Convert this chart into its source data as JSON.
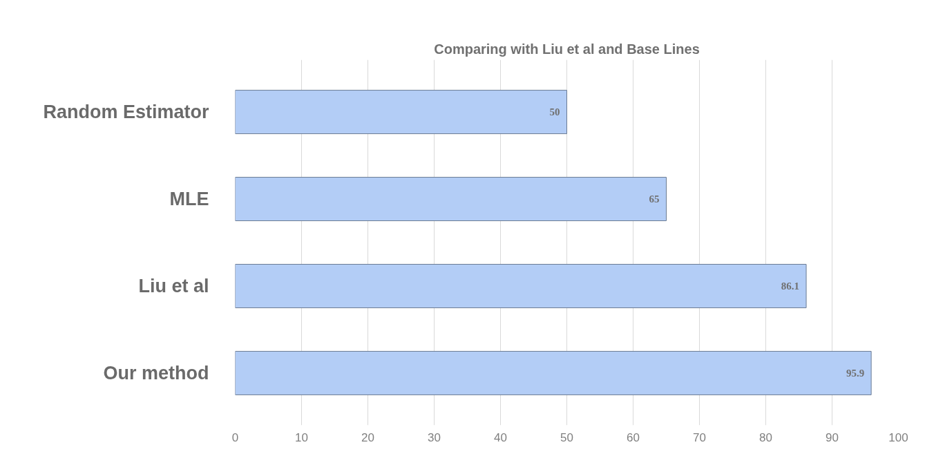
{
  "chart_data": {
    "type": "bar",
    "orientation": "horizontal",
    "title": "Comparing with Liu et al and Base Lines",
    "categories": [
      "Random Estimator",
      "MLE",
      "Liu et al",
      "Our method"
    ],
    "values": [
      50,
      65,
      86.1,
      95.9
    ],
    "color": "#b3cdf6",
    "xlim": [
      0,
      100
    ],
    "xticks": [
      0,
      10,
      20,
      30,
      40,
      50,
      60,
      70,
      80,
      90,
      100
    ],
    "grid": "x",
    "data_labels": true
  }
}
